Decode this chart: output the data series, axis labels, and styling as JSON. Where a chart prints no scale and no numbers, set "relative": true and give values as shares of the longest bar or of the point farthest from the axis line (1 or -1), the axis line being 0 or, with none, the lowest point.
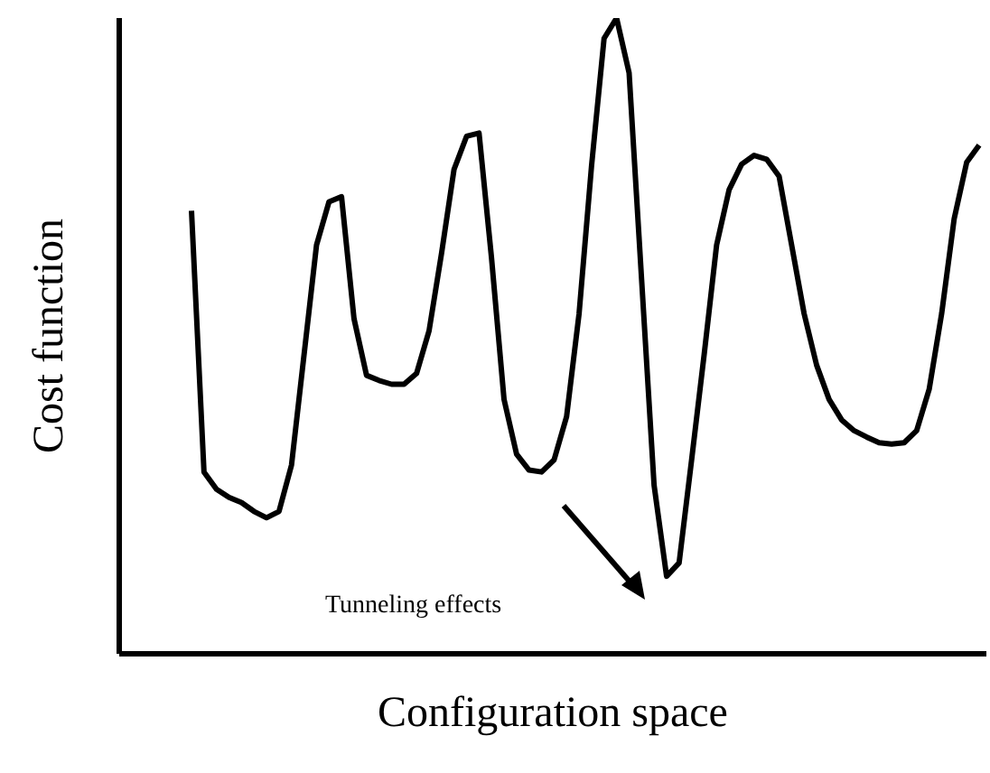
{
  "chart_data": {
    "type": "line",
    "xlabel": "Configuration space",
    "ylabel": "Cost function",
    "relative": true,
    "color": "#000000",
    "marker": "none",
    "line_style": "solid",
    "grid": false,
    "legend": false,
    "annotations": [
      "Tunneling effects"
    ],
    "categories": [
      null,
      null,
      null,
      null,
      null,
      null,
      null,
      null,
      null,
      null,
      null,
      null,
      null,
      null,
      null,
      null,
      null,
      null,
      null,
      null,
      null,
      null,
      null,
      null,
      null,
      null,
      null,
      null,
      null,
      null,
      null,
      null,
      null,
      null,
      null,
      null,
      null,
      null,
      null,
      null,
      null,
      null,
      null,
      null,
      null,
      null,
      null,
      null,
      null,
      null,
      null,
      null,
      null,
      null,
      null,
      null,
      null,
      null,
      null,
      null,
      null,
      null,
      null,
      null
    ],
    "values": [
      0.697,
      0.286,
      0.259,
      0.246,
      0.238,
      0.224,
      0.214,
      0.224,
      0.297,
      0.47,
      0.643,
      0.711,
      0.719,
      0.527,
      0.438,
      0.43,
      0.424,
      0.424,
      0.441,
      0.508,
      0.63,
      0.762,
      0.814,
      0.819,
      0.622,
      0.4,
      0.314,
      0.289,
      0.286,
      0.305,
      0.373,
      0.535,
      0.768,
      0.968,
      1,
      0.914,
      0.589,
      0.265,
      0.122,
      0.143,
      0.305,
      0.47,
      0.643,
      0.73,
      0.77,
      0.784,
      0.778,
      0.751,
      0.643,
      0.535,
      0.454,
      0.4,
      0.368,
      0.351,
      0.341,
      0.332,
      0.33,
      0.332,
      0.351,
      0.416,
      0.535,
      0.684,
      0.773,
      0.8
    ]
  }
}
